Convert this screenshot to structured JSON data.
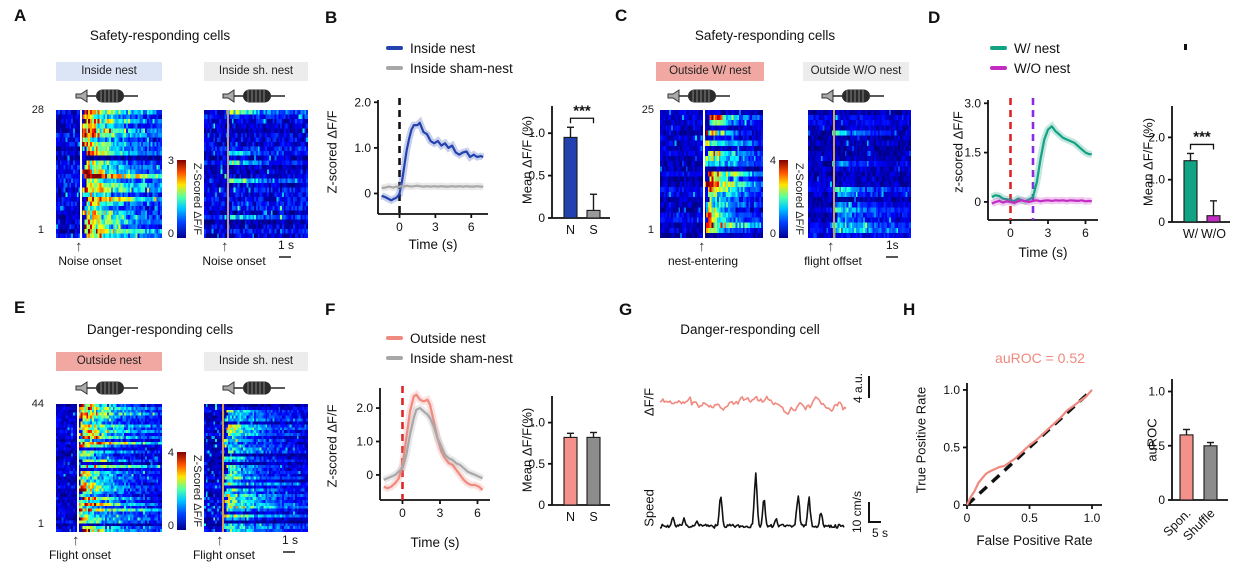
{
  "colors": {
    "blue": "#2342b0",
    "gray_trace": "#a8a8a8",
    "teal": "#12a284",
    "magenta": "#c22cc2",
    "salmon": "#f0897f",
    "salmon_bar": "#f4918a",
    "gray_bar": "#8c8c8c",
    "chip_blue": "#dbe5f6",
    "chip_gray": "#ececec",
    "chip_salmon": "#f2a8a2",
    "red_dash": "#e02424",
    "purple_dash": "#8a2be2"
  },
  "panels": {
    "A": {
      "letter": "A",
      "title": "Safety-responding cells",
      "left_chip": "Inside nest",
      "left_chip_bg": "#dbe5f6",
      "right_chip": "Inside sh. nest",
      "right_chip_bg": "#ececec",
      "row_top": "28",
      "row_bottom": "1",
      "left_event": "Noise onset",
      "right_event": "Noise onset",
      "cbar_max": "3",
      "cbar_min": "0",
      "cbar_label": "Z-Scored ΔF/F",
      "scalebar": "1 s"
    },
    "B": {
      "letter": "B",
      "legend": [
        {
          "label": "Inside nest",
          "color": "#2342b0"
        },
        {
          "label": "Inside sham-nest",
          "color": "#a8a8a8"
        }
      ]
    },
    "C": {
      "letter": "C",
      "title": "Safety-responding cells",
      "left_chip": "Outside W/ nest",
      "left_chip_bg": "#f2a8a2",
      "right_chip": "Outside W/O nest",
      "right_chip_bg": "#ececec",
      "row_top": "25",
      "row_bottom": "1",
      "left_event": "nest-entering",
      "right_event": "flight offset",
      "cbar_max": "4",
      "cbar_min": "0",
      "cbar_label": "Z-Scored ΔF/F",
      "scalebar": "1s"
    },
    "D": {
      "letter": "D",
      "legend": [
        {
          "label": "W/ nest",
          "color": "#12a284"
        },
        {
          "label": "W/O nest",
          "color": "#c22cc2"
        }
      ]
    },
    "E": {
      "letter": "E",
      "title": "Danger-responding cells",
      "left_chip": "Outside nest",
      "left_chip_bg": "#f2a8a2",
      "right_chip": "Inside sh. nest",
      "right_chip_bg": "#ececec",
      "row_top": "44",
      "row_bottom": "1",
      "left_event": "Flight onset",
      "right_event": "Flight onset",
      "cbar_max": "4",
      "cbar_min": "0",
      "cbar_label": "Z-Scored ΔF/F",
      "scalebar": "1 s"
    },
    "F": {
      "letter": "F",
      "legend": [
        {
          "label": "Outside nest",
          "color": "#f0897f"
        },
        {
          "label": "Inside sham-nest",
          "color": "#a8a8a8"
        }
      ]
    },
    "G": {
      "letter": "G",
      "title": "Danger-responding cell",
      "trace1_label": "ΔF/F",
      "trace2_label": "Speed",
      "scale1": "4 a.u.",
      "scale2": "10 cm/s",
      "scale3": "5 s"
    },
    "H": {
      "letter": "H"
    }
  },
  "chart_data": [
    {
      "id": "A-left-heatmap",
      "type": "heatmap",
      "rows": 28,
      "cols": 56,
      "zlim": [
        0,
        3
      ],
      "vmax": 3,
      "event": "Noise onset",
      "event_frac": 0.23,
      "line_color": "#ffffff",
      "resp_prob": 0.85,
      "amp_min": 1.3,
      "amp_max": 3.0,
      "seed": 101,
      "colormap": "jet",
      "zlabel": "Z-Scored ΔF/F"
    },
    {
      "id": "A-right-heatmap",
      "type": "heatmap",
      "rows": 28,
      "cols": 56,
      "zlim": [
        0,
        3
      ],
      "vmax": 3,
      "event": "Noise onset",
      "event_frac": 0.22,
      "line_color": "#c0a080",
      "resp_prob": 0.15,
      "amp_min": 0.6,
      "amp_max": 1.4,
      "seed": 202,
      "colormap": "jet",
      "zlabel": "Z-Scored ΔF/F"
    },
    {
      "id": "B-line",
      "type": "line",
      "xlabel": "Time (s)",
      "ylabel": "Z-scored ΔF/F",
      "xlim": [
        -1.8,
        7.4
      ],
      "ylim": [
        -0.45,
        2.05
      ],
      "xticks": [
        0,
        3,
        6
      ],
      "xtick_labels": [
        "0",
        "3",
        "6"
      ],
      "yticks": [
        0,
        1,
        2
      ],
      "ytick_labels": [
        "0",
        "1.0",
        "2.0"
      ],
      "vlines": [
        {
          "x": 0,
          "color": "#111111"
        }
      ],
      "series": [
        {
          "name": "Inside nest",
          "color": "#2342b0",
          "x": [
            -1.5,
            -1.2,
            -0.9,
            -0.7,
            -0.5,
            -0.3,
            -0.1,
            0,
            0.2,
            0.4,
            0.6,
            0.8,
            1,
            1.2,
            1.5,
            1.7,
            2,
            2.3,
            2.6,
            2.9,
            3.2,
            3.5,
            3.8,
            4.1,
            4.4,
            4.7,
            5,
            5.3,
            5.6,
            5.9,
            6.2,
            6.5,
            6.8,
            7
          ],
          "y": [
            -0.05,
            -0.08,
            -0.12,
            -0.15,
            -0.12,
            -0.1,
            -0.05,
            0,
            0.25,
            0.6,
            0.95,
            1.2,
            1.4,
            1.5,
            1.5,
            1.55,
            1.35,
            1.3,
            1.15,
            1.1,
            1.15,
            1.05,
            1.1,
            1,
            1.05,
            0.9,
            0.85,
            0.9,
            0.92,
            0.8,
            0.85,
            0.8,
            0.82,
            0.8
          ]
        },
        {
          "name": "Inside sham-nest",
          "color": "#a8a8a8",
          "x": [
            -1.5,
            -1.2,
            -0.9,
            -0.7,
            -0.5,
            -0.3,
            -0.1,
            0,
            0.2,
            0.4,
            0.6,
            0.8,
            1,
            1.2,
            1.5,
            1.7,
            2,
            2.3,
            2.6,
            2.9,
            3.2,
            3.5,
            3.8,
            4.1,
            4.4,
            4.7,
            5,
            5.3,
            5.6,
            5.9,
            6.2,
            6.5,
            6.8,
            7
          ],
          "y": [
            0.12,
            0.13,
            0.15,
            0.14,
            0.13,
            0.15,
            0.14,
            0.15,
            0.16,
            0.15,
            0.17,
            0.16,
            0.15,
            0.16,
            0.17,
            0.16,
            0.15,
            0.16,
            0.15,
            0.16,
            0.15,
            0.16,
            0.15,
            0.15,
            0.16,
            0.15,
            0.16,
            0.15,
            0.16,
            0.15,
            0.15,
            0.16,
            0.15,
            0.15
          ]
        }
      ]
    },
    {
      "id": "B-bar",
      "type": "bar",
      "ylabel": "Mean ΔF/F (%)",
      "categories": [
        "N",
        "S"
      ],
      "values": [
        0.95,
        0.09
      ],
      "errors": [
        0.12,
        0.19
      ],
      "colors": [
        "#2342b0",
        "#9a9a9a"
      ],
      "ylim": [
        0,
        1.25
      ],
      "yticks": [
        0,
        0.5,
        1
      ],
      "ytick_labels": [
        "0",
        "0.5",
        "1.0"
      ],
      "sig": "***"
    },
    {
      "id": "C-left-heatmap",
      "type": "heatmap",
      "rows": 25,
      "cols": 56,
      "zlim": [
        0,
        4
      ],
      "vmax": 4,
      "event": "nest-entering",
      "event_frac": 0.42,
      "line_color": "#ffffff",
      "resp_prob": 0.88,
      "amp_min": 1.8,
      "amp_max": 3.8,
      "seed": 303,
      "colormap": "jet",
      "zlabel": "Z-Scored ΔF/F"
    },
    {
      "id": "C-right-heatmap",
      "type": "heatmap",
      "rows": 25,
      "cols": 56,
      "zlim": [
        0,
        4
      ],
      "vmax": 4,
      "event": "flight offset",
      "event_frac": 0.24,
      "line_color": "#cfa054",
      "resp_prob": 0.18,
      "amp_min": 0.8,
      "amp_max": 1.8,
      "seed": 404,
      "colormap": "jet",
      "zlabel": "Z-Scored ΔF/F"
    },
    {
      "id": "D-line",
      "type": "line",
      "xlabel": "Time (s)",
      "ylabel": "z-scored ΔF/F",
      "xlim": [
        -1.8,
        7.0
      ],
      "ylim": [
        -0.55,
        3.1
      ],
      "xticks": [
        0,
        3,
        6
      ],
      "xtick_labels": [
        "0",
        "3",
        "6"
      ],
      "yticks": [
        0,
        1.5,
        3
      ],
      "ytick_labels": [
        "0",
        "1.5",
        "3.0"
      ],
      "vlines": [
        {
          "x": 0,
          "color": "#e02424"
        },
        {
          "x": 1.8,
          "color": "#8a2be2"
        }
      ],
      "series": [
        {
          "name": "W/ nest",
          "color": "#12a284",
          "x": [
            -1.5,
            -1.2,
            -0.9,
            -0.6,
            -0.3,
            0,
            0.3,
            0.6,
            0.9,
            1.2,
            1.5,
            1.8,
            2.1,
            2.4,
            2.7,
            3,
            3.3,
            3.6,
            3.9,
            4.2,
            4.5,
            4.8,
            5.1,
            5.4,
            5.7,
            6,
            6.3,
            6.5
          ],
          "y": [
            0.15,
            0.2,
            0.18,
            0.1,
            0.08,
            0.05,
            0.02,
            0.1,
            0.05,
            0.02,
            0.08,
            0.15,
            0.6,
            1.3,
            1.9,
            2.2,
            2.3,
            2.15,
            2.05,
            1.95,
            1.9,
            1.85,
            1.8,
            1.7,
            1.6,
            1.5,
            1.45,
            1.45
          ]
        },
        {
          "name": "W/O nest",
          "color": "#c22cc2",
          "x": [
            -1.5,
            -1.2,
            -0.9,
            -0.6,
            -0.3,
            0,
            0.3,
            0.6,
            0.9,
            1.2,
            1.5,
            1.8,
            2.1,
            2.4,
            2.7,
            3,
            3.3,
            3.6,
            3.9,
            4.2,
            4.5,
            4.8,
            5.1,
            5.4,
            5.7,
            6,
            6.3,
            6.5
          ],
          "y": [
            -0.05,
            0,
            0.03,
            -0.02,
            0.02,
            0,
            -0.03,
            0.02,
            0.05,
            0.02,
            0,
            0.03,
            0.05,
            0.02,
            0.04,
            0.05,
            0.03,
            0.05,
            0.04,
            0.05,
            0.03,
            0.05,
            0.04,
            0.03,
            0.05,
            0.02,
            0.03,
            0.02
          ]
        }
      ]
    },
    {
      "id": "D-bar",
      "type": "bar",
      "ylabel": "Mean ΔF/F (%)",
      "categories": [
        "W/",
        "W/O"
      ],
      "values": [
        1.45,
        0.15
      ],
      "errors": [
        0.17,
        0.35
      ],
      "colors": [
        "#12a284",
        "#c22cc2"
      ],
      "ylim": [
        0,
        2.6
      ],
      "yticks": [
        0,
        1,
        2
      ],
      "ytick_labels": [
        "0",
        "1.0",
        "2.0"
      ],
      "sig": "***"
    },
    {
      "id": "E-left-heatmap",
      "type": "heatmap",
      "rows": 44,
      "cols": 56,
      "zlim": [
        0,
        4
      ],
      "vmax": 4,
      "event": "Flight onset",
      "event_frac": 0.2,
      "line_color": "#ffffff",
      "resp_prob": 0.9,
      "amp_min": 1.5,
      "amp_max": 3.5,
      "seed": 505,
      "colormap": "jet",
      "zlabel": "Z-Scored ΔF/F"
    },
    {
      "id": "E-right-heatmap",
      "type": "heatmap",
      "rows": 44,
      "cols": 56,
      "zlim": [
        0,
        4
      ],
      "vmax": 4,
      "event": "Flight onset",
      "event_frac": 0.17,
      "line_color": "#d8a04a",
      "resp_prob": 0.8,
      "amp_min": 0.9,
      "amp_max": 2.4,
      "seed": 606,
      "pre_act": true,
      "colormap": "jet",
      "zlabel": "Z-Scored ΔF/F"
    },
    {
      "id": "F-line",
      "type": "line",
      "xlabel": "Time (s)",
      "ylabel": "Z-scored ΔF/F",
      "xlim": [
        -1.8,
        7.0
      ],
      "ylim": [
        -0.75,
        2.6
      ],
      "xticks": [
        0,
        3,
        6
      ],
      "xtick_labels": [
        "0",
        "3",
        "6"
      ],
      "yticks": [
        0,
        1,
        2
      ],
      "ytick_labels": [
        "0",
        "1.0",
        "2.0"
      ],
      "vlines": [
        {
          "x": 0,
          "color": "#e02424"
        }
      ],
      "series": [
        {
          "name": "Outside nest",
          "color": "#f0897f",
          "x": [
            -1.5,
            -1.2,
            -0.9,
            -0.6,
            -0.3,
            0,
            0.3,
            0.6,
            0.9,
            1.1,
            1.4,
            1.7,
            2,
            2.2,
            2.5,
            2.8,
            3.1,
            3.4,
            3.7,
            4,
            4.3,
            4.6,
            4.9,
            5.2,
            5.5,
            5.8,
            6.1,
            6.4
          ],
          "y": [
            -0.35,
            -0.4,
            -0.35,
            -0.25,
            -0.1,
            0.3,
            1.1,
            1.9,
            2.35,
            2.4,
            2.25,
            2.2,
            2.25,
            2.1,
            1.6,
            1.1,
            0.7,
            0.5,
            0.35,
            0.3,
            0.15,
            0,
            -0.15,
            -0.25,
            -0.3,
            -0.3,
            -0.35,
            -0.45
          ]
        },
        {
          "name": "Inside sham-nest",
          "color": "#a8a8a8",
          "x": [
            -1.5,
            -1.2,
            -0.9,
            -0.6,
            -0.3,
            0,
            0.3,
            0.6,
            0.9,
            1.1,
            1.4,
            1.7,
            2,
            2.2,
            2.5,
            2.8,
            3.1,
            3.4,
            3.7,
            4,
            4.3,
            4.6,
            4.9,
            5.2,
            5.5,
            5.8,
            6.1,
            6.4
          ],
          "y": [
            -0.15,
            -0.1,
            -0.05,
            0,
            0.1,
            0.2,
            0.6,
            1.2,
            1.7,
            1.95,
            2,
            1.9,
            1.8,
            1.7,
            1.45,
            1.1,
            0.85,
            0.6,
            0.5,
            0.45,
            0.35,
            0.3,
            0.2,
            0.1,
            0.05,
            0,
            -0.05,
            -0.1
          ]
        }
      ]
    },
    {
      "id": "F-bar",
      "type": "bar",
      "ylabel": "Mean ΔF/F(%)",
      "categories": [
        "N",
        "S"
      ],
      "values": [
        0.82,
        0.82
      ],
      "errors": [
        0.05,
        0.06
      ],
      "colors": [
        "#f4918a",
        "#8c8c8c"
      ],
      "ylim": [
        0,
        1.25
      ],
      "yticks": [
        0,
        0.5,
        1
      ],
      "ytick_labels": [
        "0",
        "0.5",
        "1.0"
      ]
    },
    {
      "id": "G-dff",
      "type": "trace",
      "kind": "dff",
      "label": "ΔF/F",
      "color": "#f0897f",
      "n": 130,
      "seed": 11,
      "scalebar": "4 a.u."
    },
    {
      "id": "G-speed",
      "type": "trace",
      "kind": "speed",
      "label": "Speed",
      "color": "#111111",
      "n": 170,
      "seed": 7,
      "base_noise": 0.07,
      "unit": "cm/s",
      "scalebar_y": "10 cm/s",
      "scalebar_x": "5 s",
      "spikes": [
        {
          "pos": 0.07,
          "amp": 0.22
        },
        {
          "pos": 0.13,
          "amp": 0.18
        },
        {
          "pos": 0.2,
          "amp": 0.12
        },
        {
          "pos": 0.33,
          "amp": 0.55
        },
        {
          "pos": 0.52,
          "amp": 1.0
        },
        {
          "pos": 0.565,
          "amp": 0.5
        },
        {
          "pos": 0.63,
          "amp": 0.18
        },
        {
          "pos": 0.75,
          "amp": 0.62
        },
        {
          "pos": 0.81,
          "amp": 0.55
        },
        {
          "pos": 0.875,
          "amp": 0.3
        }
      ]
    },
    {
      "id": "H-roc",
      "type": "line",
      "annotation": "auROC = 0.52",
      "annotation_color": "#f0897f",
      "xlabel": "False Positive Rate",
      "ylabel": "True Positive Rate",
      "xlim": [
        0,
        1.08
      ],
      "ylim": [
        0,
        1.06
      ],
      "xticks": [
        0,
        0.5,
        1
      ],
      "xtick_labels": [
        "0",
        "0.5",
        "1.0"
      ],
      "yticks": [
        0,
        0.5,
        1
      ],
      "ytick_labels": [
        "0",
        "0.5",
        "1.0"
      ],
      "diagonal": true,
      "series": [
        {
          "name": "ROC",
          "color": "#f0897f",
          "band": false,
          "x": [
            0,
            0.03,
            0.06,
            0.09,
            0.12,
            0.15,
            0.18,
            0.22,
            0.26,
            0.3,
            0.34,
            0.38,
            0.42,
            0.46,
            0.5,
            0.55,
            0.6,
            0.65,
            0.7,
            0.75,
            0.8,
            0.85,
            0.9,
            0.95,
            1
          ],
          "y": [
            0,
            0.07,
            0.12,
            0.19,
            0.23,
            0.27,
            0.29,
            0.31,
            0.33,
            0.34,
            0.37,
            0.4,
            0.44,
            0.48,
            0.52,
            0.56,
            0.61,
            0.66,
            0.71,
            0.76,
            0.82,
            0.86,
            0.9,
            0.94,
            1
          ]
        }
      ]
    },
    {
      "id": "H-bar",
      "type": "bar",
      "ylabel": "auROC",
      "categories": [
        "Spon.",
        "Shuffle"
      ],
      "values": [
        0.6,
        0.5
      ],
      "errors": [
        0.05,
        0.03
      ],
      "colors": [
        "#f4918a",
        "#8c8c8c"
      ],
      "ylim": [
        0,
        1.06
      ],
      "yticks": [
        0,
        0.5,
        1
      ],
      "ytick_labels": [
        "0",
        "0.5",
        "1.0"
      ],
      "rotate_labels": true
    }
  ]
}
